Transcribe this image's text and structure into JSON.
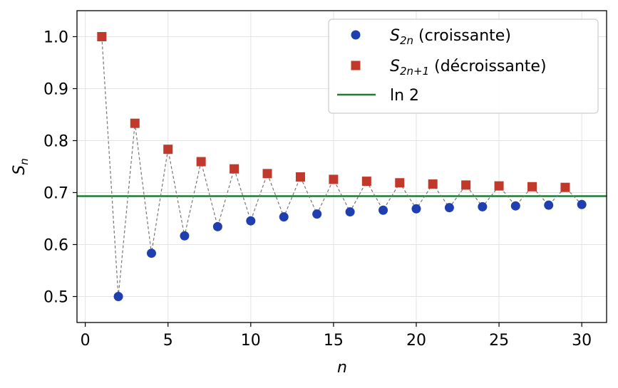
{
  "chart_data": {
    "type": "scatter",
    "xlabel": "n",
    "ylabel": "S_n",
    "xlim": [
      -0.5,
      31.5
    ],
    "ylim": [
      0.45,
      1.05
    ],
    "xticks": [
      0,
      5,
      10,
      15,
      20,
      25,
      30
    ],
    "yticks": [
      0.5,
      0.6,
      0.7,
      0.8,
      0.9,
      1.0
    ],
    "xtick_labels": [
      "0",
      "5",
      "10",
      "15",
      "20",
      "25",
      "30"
    ],
    "ytick_labels": [
      "0.5",
      "0.6",
      "0.7",
      "0.8",
      "0.9",
      "1.0"
    ],
    "grid": true,
    "legend_position": "top-right",
    "series": [
      {
        "name": "S_2n (croissante)",
        "legend_main": "S",
        "legend_sub": "2n",
        "legend_rest": " (croissante)",
        "marker": "circle",
        "color": "#1f3fb0",
        "x": [
          2,
          4,
          6,
          8,
          10,
          12,
          14,
          16,
          18,
          20,
          22,
          24,
          26,
          28,
          30
        ],
        "y": [
          0.5,
          0.5833,
          0.6167,
          0.6345,
          0.6456,
          0.6532,
          0.6587,
          0.6629,
          0.6661,
          0.6688,
          0.671,
          0.6728,
          0.6744,
          0.6758,
          0.677
        ]
      },
      {
        "name": "S_2n+1 (décroissante)",
        "legend_main": "S",
        "legend_sub": "2n+1",
        "legend_rest": " (décroissante)",
        "marker": "square",
        "color": "#c0392b",
        "x": [
          1,
          3,
          5,
          7,
          9,
          11,
          13,
          15,
          17,
          19,
          21,
          23,
          25,
          27,
          29
        ],
        "y": [
          1.0,
          0.8333,
          0.7833,
          0.7595,
          0.7456,
          0.7365,
          0.7301,
          0.7254,
          0.7218,
          0.7188,
          0.7164,
          0.7145,
          0.7128,
          0.7113,
          0.71
        ]
      }
    ],
    "connector": {
      "style": "dashed",
      "color": "#777777"
    },
    "reference_line": {
      "label": "ln 2",
      "y": 0.6931,
      "color": "#1e7b34"
    }
  }
}
